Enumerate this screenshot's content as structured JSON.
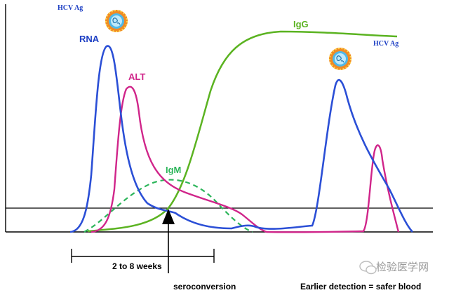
{
  "labels": {
    "hcv_ag_top": "HCV Ag",
    "hcv_ag_right": "HCV Ag",
    "rna": "RNA",
    "alt": "ALT",
    "igm": "IgM",
    "igg": "IgG",
    "window": "2 to 8 weeks",
    "seroconversion": "seroconversion",
    "caption": "Earlier detection = safer blood"
  },
  "watermark": {
    "text": "检验医学网",
    "icon": "wechat-icon"
  },
  "colors": {
    "rna": "#2b4fd6",
    "alt": "#d0258a",
    "igm": "#2cb55a",
    "igg": "#5bb321",
    "axis": "#000000",
    "label_blue": "#1d3fc4",
    "label_magenta": "#d0258a",
    "label_green": "#2cb55a",
    "virion_outer": "#f08a24",
    "virion_inner": "#4fb8e8"
  }
}
